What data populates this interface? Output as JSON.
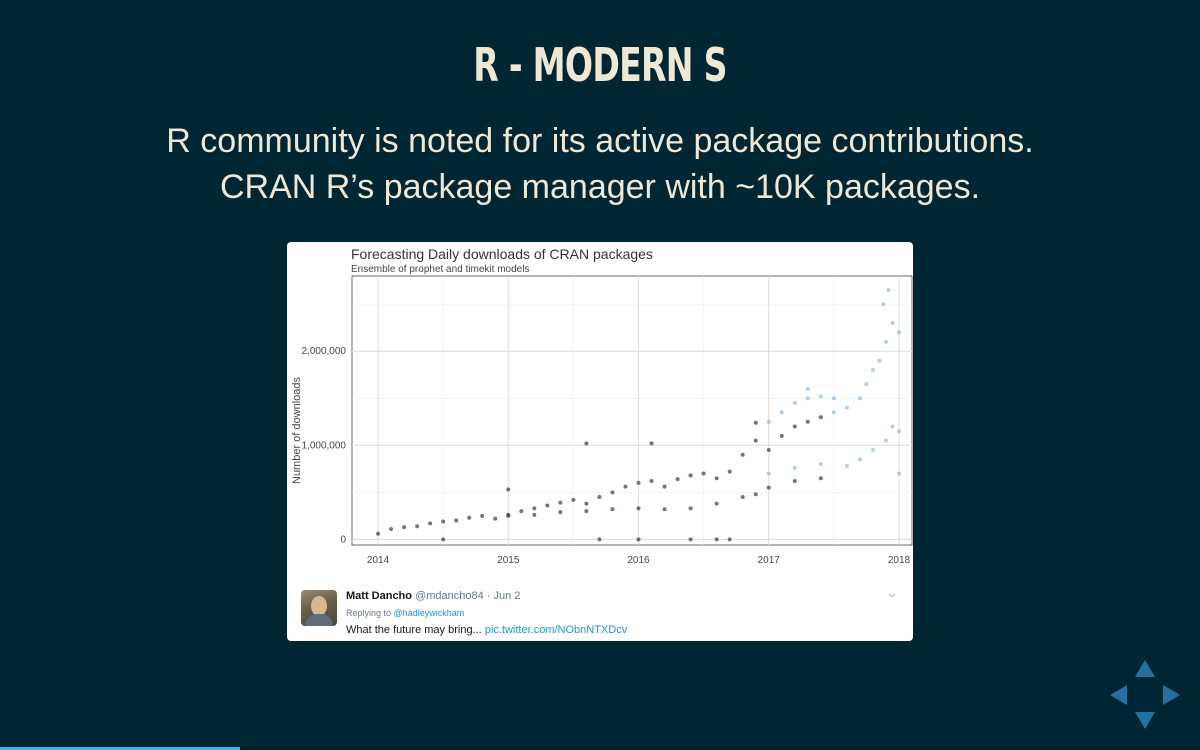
{
  "slide": {
    "title": "R - MODERN S",
    "lines": [
      "R community is noted for its active package contributions.",
      "CRAN R’s package manager with ~10K packages."
    ]
  },
  "colors": {
    "background": "#002533",
    "text": "#eee8d5",
    "accent": "#42affa",
    "historical_points": "#2c3e50",
    "forecast_points": "#6fa8d6"
  },
  "tweet": {
    "name": "Matt Dancho",
    "handle": "@mdancho84",
    "date": "· Jun 2",
    "reply_prefix": "Replying to",
    "reply_to": "@hadleywickham",
    "text": "What the future may bring...",
    "link": "pic.twitter.com/NObnNTXDcv",
    "menu_icon": "chevron-down-icon",
    "avatar_icon": "avatar-photo"
  },
  "controls": {
    "icons": [
      "arrow-up-icon",
      "arrow-left-icon",
      "arrow-right-icon",
      "arrow-down-icon"
    ]
  },
  "progress": {
    "fraction": 0.2
  },
  "chart_data": {
    "type": "scatter",
    "title": "Forecasting Daily downloads of CRAN packages",
    "subtitle": "Ensemble of prophet and timekit models",
    "xlabel": "",
    "ylabel": "Number of downloads",
    "xlim": [
      2013.8,
      2018.1
    ],
    "ylim": [
      -60000,
      2800000
    ],
    "x_ticks": [
      2014,
      2015,
      2016,
      2017,
      2018
    ],
    "x_tick_labels": [
      "2014",
      "2015",
      "2016",
      "2017",
      "2018"
    ],
    "y_ticks": [
      0,
      1000000,
      2000000
    ],
    "y_tick_labels": [
      "0",
      "1,000,000",
      "2,000,000"
    ],
    "grid": true,
    "legend": "none",
    "series": [
      {
        "kind": "historical",
        "points": [
          [
            2014.0,
            60000
          ],
          [
            2014.1,
            110000
          ],
          [
            2014.2,
            130000
          ],
          [
            2014.3,
            140000
          ],
          [
            2014.4,
            170000
          ],
          [
            2014.5,
            190000
          ],
          [
            2014.6,
            200000
          ],
          [
            2014.7,
            230000
          ],
          [
            2014.8,
            250000
          ],
          [
            2014.9,
            220000
          ],
          [
            2015.0,
            260000
          ],
          [
            2015.1,
            300000
          ],
          [
            2015.2,
            330000
          ],
          [
            2015.3,
            360000
          ],
          [
            2015.4,
            390000
          ],
          [
            2015.5,
            420000
          ],
          [
            2015.6,
            380000
          ],
          [
            2015.7,
            450000
          ],
          [
            2015.8,
            500000
          ],
          [
            2015.9,
            560000
          ],
          [
            2016.0,
            600000
          ],
          [
            2016.1,
            620000
          ],
          [
            2016.2,
            560000
          ],
          [
            2016.3,
            640000
          ],
          [
            2016.4,
            680000
          ],
          [
            2016.5,
            700000
          ],
          [
            2016.6,
            650000
          ],
          [
            2016.7,
            720000
          ],
          [
            2016.8,
            900000
          ],
          [
            2016.9,
            1050000
          ],
          [
            2017.0,
            950000
          ],
          [
            2017.1,
            1100000
          ],
          [
            2017.2,
            1200000
          ],
          [
            2017.3,
            1250000
          ],
          [
            2017.4,
            1300000
          ],
          [
            2015.0,
            250000
          ],
          [
            2015.2,
            260000
          ],
          [
            2015.4,
            290000
          ],
          [
            2015.6,
            300000
          ],
          [
            2015.8,
            320000
          ],
          [
            2016.0,
            330000
          ],
          [
            2016.2,
            320000
          ],
          [
            2016.4,
            330000
          ],
          [
            2016.6,
            380000
          ],
          [
            2016.8,
            450000
          ],
          [
            2016.9,
            480000
          ],
          [
            2017.0,
            550000
          ],
          [
            2017.2,
            620000
          ],
          [
            2017.4,
            650000
          ],
          [
            2014.5,
            0
          ],
          [
            2015.7,
            0
          ],
          [
            2016.0,
            0
          ],
          [
            2016.4,
            0
          ],
          [
            2016.6,
            0
          ],
          [
            2016.7,
            0
          ],
          [
            2015.0,
            530000
          ],
          [
            2015.6,
            1020000
          ],
          [
            2016.1,
            1020000
          ],
          [
            2016.9,
            1240000
          ]
        ]
      },
      {
        "kind": "forecast",
        "points": [
          [
            2017.0,
            1250000
          ],
          [
            2017.1,
            1350000
          ],
          [
            2017.2,
            1450000
          ],
          [
            2017.3,
            1500000
          ],
          [
            2017.4,
            1520000
          ],
          [
            2017.5,
            1500000
          ],
          [
            2017.6,
            1400000
          ],
          [
            2017.7,
            1500000
          ],
          [
            2017.75,
            1650000
          ],
          [
            2017.8,
            1800000
          ],
          [
            2017.85,
            1900000
          ],
          [
            2017.9,
            2100000
          ],
          [
            2017.95,
            2300000
          ],
          [
            2018.0,
            2200000
          ],
          [
            2017.0,
            700000
          ],
          [
            2017.2,
            760000
          ],
          [
            2017.4,
            800000
          ],
          [
            2017.6,
            780000
          ],
          [
            2017.7,
            850000
          ],
          [
            2017.8,
            950000
          ],
          [
            2017.9,
            1050000
          ],
          [
            2017.95,
            1200000
          ],
          [
            2018.0,
            1150000
          ],
          [
            2018.0,
            700000
          ],
          [
            2017.92,
            2650000
          ],
          [
            2017.88,
            2500000
          ],
          [
            2017.3,
            1600000
          ],
          [
            2017.5,
            1350000
          ]
        ]
      }
    ]
  }
}
